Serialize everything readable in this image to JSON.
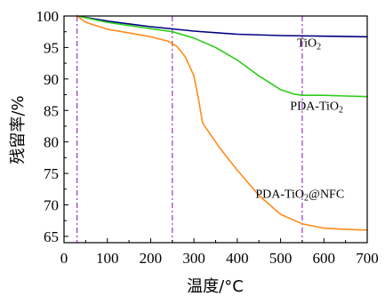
{
  "chart_data": {
    "type": "line",
    "xlabel": "温度/°C",
    "ylabel": "残留率/%",
    "xlim": [
      0,
      700
    ],
    "ylim": [
      64,
      100
    ],
    "xticks": [
      "0",
      "100",
      "200",
      "300",
      "400",
      "500",
      "600",
      "700"
    ],
    "yticks": [
      "65",
      "70",
      "75",
      "80",
      "85",
      "90",
      "95",
      "100"
    ],
    "grid": false,
    "reference_lines_x": [
      30,
      250,
      550
    ],
    "reference_line_color": "#9933cc",
    "series": [
      {
        "label_main": "TiO",
        "label_sub": "2",
        "label_tail": "",
        "color": "#000080",
        "x": [
          30,
          100,
          200,
          300,
          400,
          500,
          600,
          700
        ],
        "y": [
          100,
          99.2,
          98.3,
          97.6,
          97.1,
          96.9,
          96.8,
          96.7
        ]
      },
      {
        "label_main": "PDA-TiO",
        "label_sub": "2",
        "label_tail": "",
        "color": "#2ecc1a",
        "x": [
          30,
          100,
          200,
          250,
          300,
          350,
          400,
          450,
          500,
          530,
          550,
          600,
          650,
          700
        ],
        "y": [
          100,
          99.0,
          98.0,
          97.5,
          96.5,
          95.0,
          93.0,
          90.5,
          88.3,
          87.6,
          87.4,
          87.4,
          87.3,
          87.2
        ]
      },
      {
        "label_main": "PDA-TiO",
        "label_sub": "2",
        "label_tail": "@NFC",
        "color": "#ff8c1a",
        "x": [
          30,
          50,
          100,
          150,
          200,
          240,
          260,
          280,
          300,
          310,
          320,
          340,
          360,
          400,
          450,
          500,
          550,
          600,
          650,
          700
        ],
        "y": [
          100,
          99.0,
          97.9,
          97.3,
          96.7,
          96.0,
          95.2,
          93.5,
          90.5,
          87.0,
          83.0,
          81.0,
          79.0,
          75.5,
          71.5,
          68.5,
          67.0,
          66.3,
          66.1,
          66.0
        ]
      }
    ]
  }
}
